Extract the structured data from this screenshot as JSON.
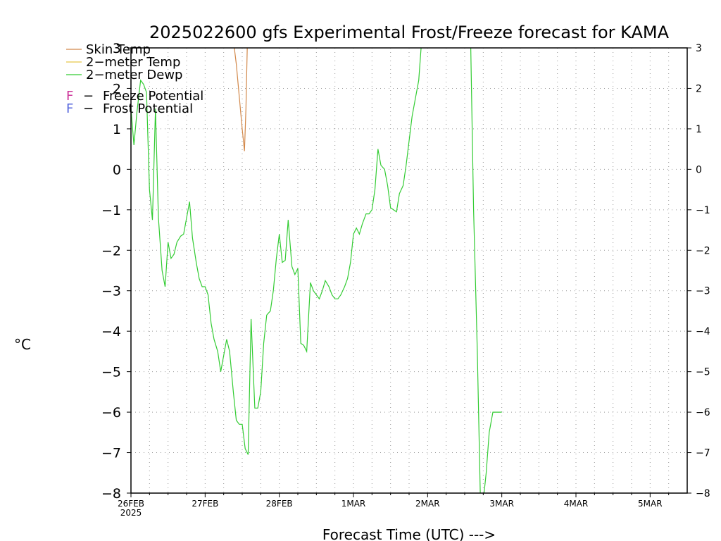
{
  "chart_data": {
    "type": "line",
    "title": "2025022600 gfs Experimental Frost/Freeze forecast for KAMA",
    "xlabel": "Forecast Time (UTC) --->",
    "ylabel": "°C",
    "ylim": [
      -8,
      3
    ],
    "xlim_days": [
      0,
      7.5
    ],
    "grid": true,
    "x_ticks": [
      {
        "label": "26FEB",
        "sublabel": "2025",
        "day": 0
      },
      {
        "label": "27FEB",
        "sublabel": "",
        "day": 1
      },
      {
        "label": "28FEB",
        "sublabel": "",
        "day": 2
      },
      {
        "label": "1MAR",
        "sublabel": "",
        "day": 3
      },
      {
        "label": "2MAR",
        "sublabel": "",
        "day": 4
      },
      {
        "label": "3MAR",
        "sublabel": "",
        "day": 5
      },
      {
        "label": "4MAR",
        "sublabel": "",
        "day": 6
      },
      {
        "label": "5MAR",
        "sublabel": "",
        "day": 7
      }
    ],
    "y_ticks_left": [
      "3",
      "2",
      "1",
      "0",
      "−1",
      "−2",
      "−3",
      "−4",
      "−5",
      "−6",
      "−7",
      "−8"
    ],
    "y_ticks_right": [
      "3",
      "2",
      "1",
      "0",
      "−1",
      "−2",
      "−3",
      "−4",
      "−5",
      "−6",
      "−7",
      "−8"
    ],
    "legend": [
      {
        "label": "Skin Temp",
        "color": "#d2884a",
        "marker": "line"
      },
      {
        "label": "2−meter Temp",
        "color": "#e6c84a",
        "marker": "line"
      },
      {
        "label": "2−meter Dewp",
        "color": "#33cc33",
        "marker": "line"
      },
      {
        "label": "Freeze Potential",
        "color": "#cc3399",
        "marker": "F"
      },
      {
        "label": "Frost Potential",
        "color": "#5566dd",
        "marker": "F"
      }
    ],
    "series": [
      {
        "name": "Skin Temp",
        "color": "#d2884a",
        "x": [
          1.38,
          1.42,
          1.46,
          1.5,
          1.53,
          1.55,
          1.57
        ],
        "y": [
          3.2,
          2.6,
          1.8,
          1.0,
          0.45,
          1.5,
          3.2
        ]
      },
      {
        "name": "2−meter Dewp",
        "color": "#33cc33",
        "x": [
          0.0,
          0.04,
          0.08,
          0.13,
          0.17,
          0.21,
          0.25,
          0.29,
          0.33,
          0.37,
          0.42,
          0.46,
          0.5,
          0.54,
          0.58,
          0.62,
          0.67,
          0.71,
          0.75,
          0.79,
          0.83,
          0.88,
          0.92,
          0.96,
          1.0,
          1.04,
          1.08,
          1.12,
          1.17,
          1.21,
          1.25,
          1.29,
          1.33,
          1.38,
          1.42,
          1.46,
          1.5,
          1.54,
          1.58,
          1.62,
          1.67,
          1.71,
          1.75,
          1.79,
          1.83,
          1.88,
          1.92,
          1.96,
          2.0,
          2.04,
          2.08,
          2.12,
          2.17,
          2.21,
          2.25,
          2.29,
          2.33,
          2.37,
          2.42,
          2.46,
          2.5,
          2.54,
          2.58,
          2.62,
          2.67,
          2.71,
          2.75,
          2.79,
          2.83,
          2.88,
          2.92,
          2.96,
          3.0,
          3.04,
          3.08,
          3.12,
          3.17,
          3.21,
          3.25,
          3.29,
          3.33,
          3.37,
          3.42,
          3.46,
          3.5,
          3.54,
          3.58,
          3.62,
          3.67,
          3.71,
          3.75,
          3.79,
          3.83,
          3.88,
          3.92,
          3.96,
          4.0,
          4.04,
          4.08,
          4.12,
          4.17,
          4.21,
          4.25,
          4.29,
          4.33,
          4.37,
          4.42,
          4.46,
          4.5,
          4.54,
          4.58,
          4.62,
          4.67,
          4.71,
          4.75,
          4.79,
          4.83,
          4.88,
          4.92,
          4.96,
          5.0
        ],
        "y": [
          1.5,
          0.6,
          1.4,
          2.2,
          2.1,
          1.9,
          -0.5,
          -1.25,
          1.5,
          -1.2,
          -2.5,
          -2.9,
          -1.8,
          -2.2,
          -2.1,
          -1.8,
          -1.65,
          -1.6,
          -1.2,
          -0.8,
          -1.7,
          -2.3,
          -2.7,
          -2.9,
          -2.9,
          -3.1,
          -3.8,
          -4.2,
          -4.5,
          -5.0,
          -4.6,
          -4.2,
          -4.5,
          -5.5,
          -6.2,
          -6.3,
          -6.3,
          -6.9,
          -7.05,
          -3.7,
          -5.9,
          -5.9,
          -5.5,
          -4.3,
          -3.6,
          -3.5,
          -3.0,
          -2.2,
          -1.6,
          -2.3,
          -2.25,
          -1.25,
          -2.4,
          -2.6,
          -2.45,
          -4.3,
          -4.35,
          -4.5,
          -2.8,
          -3.0,
          -3.1,
          -3.2,
          -3.0,
          -2.75,
          -2.9,
          -3.1,
          -3.2,
          -3.2,
          -3.1,
          -2.9,
          -2.7,
          -2.3,
          -1.6,
          -1.45,
          -1.6,
          -1.35,
          -1.1,
          -1.1,
          -1.0,
          -0.5,
          0.5,
          0.1,
          0.0,
          -0.4,
          -0.95,
          -1.0,
          -1.05,
          -0.6,
          -0.4,
          0.1,
          0.7,
          1.3,
          1.7,
          2.2,
          3.2,
          3.2,
          3.2,
          3.2,
          3.2,
          3.2,
          3.2,
          3.2,
          3.2,
          3.2,
          3.2,
          3.2,
          3.2,
          3.2,
          3.2,
          3.2,
          3.2,
          -1.0,
          -4.5,
          -8.0,
          -8.2,
          -7.5,
          -6.5,
          -6.0,
          -6.0,
          -6.0,
          -6.0
        ]
      }
    ]
  }
}
